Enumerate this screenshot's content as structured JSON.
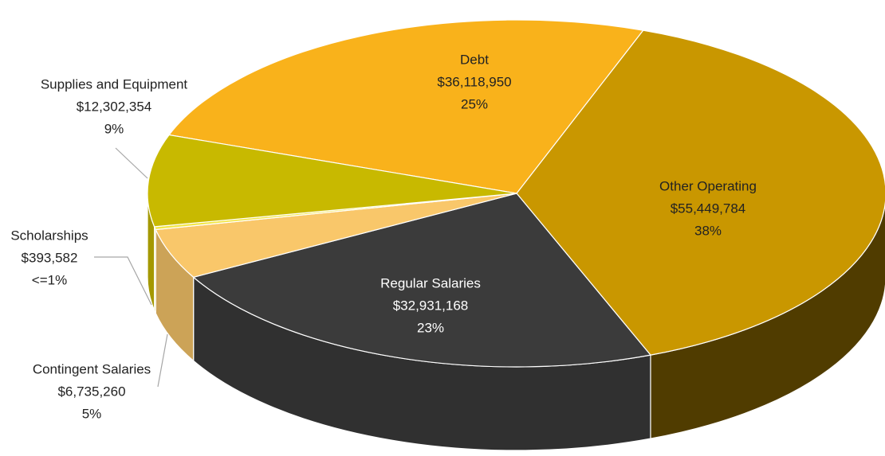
{
  "chart_data": {
    "type": "pie3d",
    "categories": [
      "Debt",
      "Other Operating",
      "Regular Salaries",
      "Contingent Salaries",
      "Scholarships",
      "Supplies and Equipment"
    ],
    "values": [
      36118950,
      55449784,
      32931168,
      6735260,
      393582,
      12302354
    ],
    "value_labels": [
      "$36,118,950",
      "$55,449,784",
      "$32,931,168",
      "$6,735,260",
      "$393,582",
      "$12,302,354"
    ],
    "percent_labels": [
      "25%",
      "38%",
      "23%",
      "5%",
      "<=1%",
      "9%"
    ],
    "colors": [
      "#f9b21b",
      "#c99700",
      "#3b3b3b",
      "#f9c76a",
      "#f3e646",
      "#c8b900"
    ]
  }
}
